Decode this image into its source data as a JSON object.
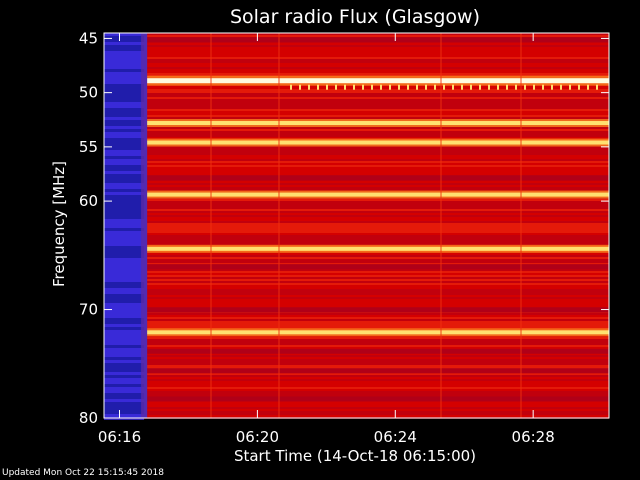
{
  "chart_data": {
    "type": "heatmap",
    "title": "Solar radio Flux (Glasgow)",
    "xlabel": "Start Time (14-Oct-18 06:15:00)",
    "ylabel": "Frequency [MHz]",
    "x_unit": "minutes after 06:15:00",
    "xlim": [
      0.55,
      15.2
    ],
    "ylim": [
      44.5,
      80
    ],
    "x_tick_labels": [
      "06:16",
      "06:20",
      "06:24",
      "06:28"
    ],
    "x_ticks": [
      1,
      5,
      9,
      13
    ],
    "y_ticks": [
      45,
      50,
      55,
      60,
      70,
      80
    ],
    "colormap": [
      "#1a1aa0",
      "#3a2ad8",
      "#b00018",
      "#d40000",
      "#f03010",
      "#ff8a20",
      "#ffe070",
      "#fffbe0"
    ],
    "bright_bands_mhz": [
      48.9,
      52.8,
      54.6,
      59.4,
      64.4,
      72.1
    ],
    "dark_bands_mhz": [
      45.1,
      57.8,
      66.0,
      70.0,
      73.8,
      75.6,
      78.2
    ],
    "low_flux_window_minutes": [
      0.55,
      1.8
    ]
  },
  "footer": {
    "updated": "Updated Mon Oct 22 15:15:45 2018"
  }
}
